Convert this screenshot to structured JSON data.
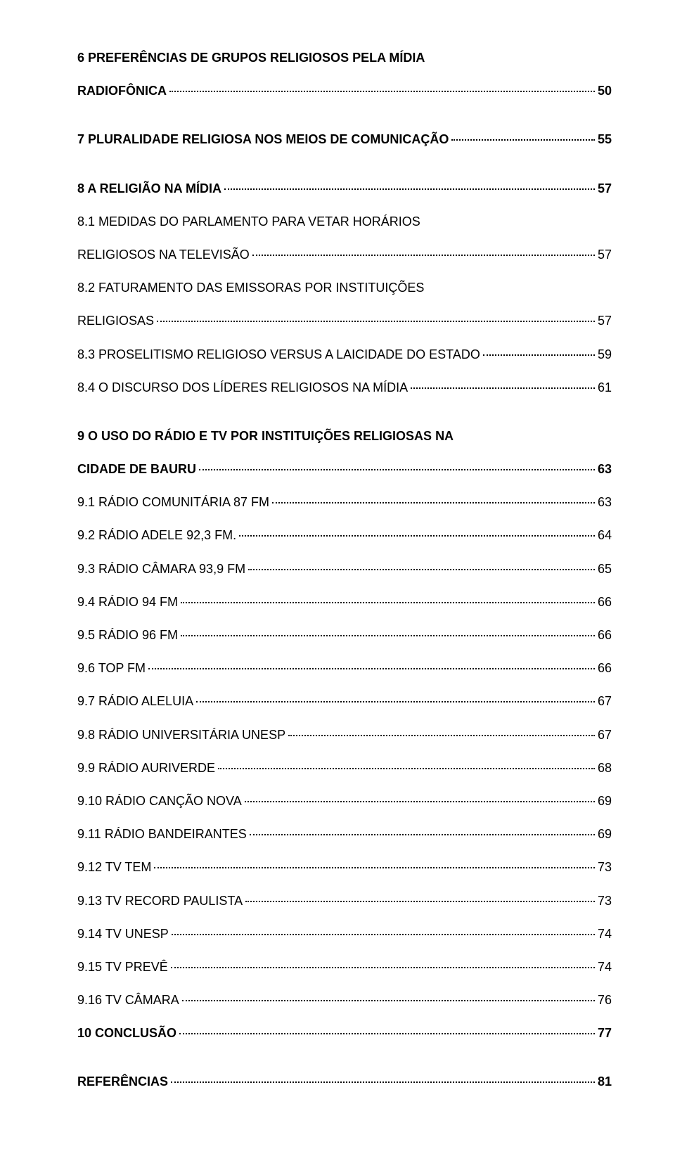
{
  "entries": [
    {
      "type": "multiline",
      "bold": true,
      "line1": "6 PREFERÊNCIAS DE GRUPOS RELIGIOSOS PELA MÍDIA",
      "line2": "RADIOFÔNICA",
      "page": "50"
    },
    {
      "type": "spacer"
    },
    {
      "type": "single",
      "bold": true,
      "label": "7 PLURALIDADE RELIGIOSA NOS MEIOS DE COMUNICAÇÃO",
      "page": "55"
    },
    {
      "type": "spacer"
    },
    {
      "type": "single",
      "bold": true,
      "label": "8 A RELIGIÃO NA MÍDIA",
      "page": "57"
    },
    {
      "type": "multiline",
      "bold": false,
      "line1": "8.1 MEDIDAS DO PARLAMENTO PARA VETAR HORÁRIOS",
      "line2": "RELIGIOSOS NA TELEVISÃO",
      "page": "57"
    },
    {
      "type": "multiline",
      "bold": false,
      "line1": "8.2 FATURAMENTO DAS EMISSORAS POR INSTITUIÇÕES",
      "line2": "RELIGIOSAS",
      "page": "57"
    },
    {
      "type": "single",
      "bold": false,
      "label": "8.3 PROSELITISMO RELIGIOSO VERSUS A LAICIDADE DO ESTADO",
      "page": "59"
    },
    {
      "type": "single",
      "bold": false,
      "label": "8.4 O DISCURSO DOS LÍDERES RELIGIOSOS NA MÍDIA",
      "page": "61"
    },
    {
      "type": "spacer"
    },
    {
      "type": "multiline",
      "bold": true,
      "line1": "9 O USO DO RÁDIO E TV POR INSTITUIÇÕES RELIGIOSAS NA",
      "line2": "CIDADE DE BAURU",
      "page": "63"
    },
    {
      "type": "single",
      "bold": false,
      "label": "9.1 RÁDIO COMUNITÁRIA 87 FM",
      "page": "63"
    },
    {
      "type": "single",
      "bold": false,
      "label": "9.2 RÁDIO ADELE 92,3 FM.",
      "page": "64"
    },
    {
      "type": "single",
      "bold": false,
      "label": "9.3 RÁDIO CÂMARA 93,9 FM",
      "page": "65"
    },
    {
      "type": "single",
      "bold": false,
      "label": "9.4 RÁDIO 94 FM",
      "page": "66"
    },
    {
      "type": "single",
      "bold": false,
      "label": "9.5 RÁDIO 96 FM",
      "page": "66"
    },
    {
      "type": "single",
      "bold": false,
      "label": "9.6 TOP FM",
      "page": "66"
    },
    {
      "type": "single",
      "bold": false,
      "label": "9.7 RÁDIO ALELUIA",
      "page": "67"
    },
    {
      "type": "single",
      "bold": false,
      "label": "9.8 RÁDIO UNIVERSITÁRIA UNESP",
      "page": "67"
    },
    {
      "type": "single",
      "bold": false,
      "label": "9.9 RÁDIO AURIVERDE",
      "page": "68"
    },
    {
      "type": "single",
      "bold": false,
      "label": "9.10 RÁDIO CANÇÃO NOVA",
      "page": "69"
    },
    {
      "type": "single",
      "bold": false,
      "label": "9.11 RÁDIO BANDEIRANTES",
      "page": "69"
    },
    {
      "type": "single",
      "bold": false,
      "label": "9.12 TV TEM",
      "page": "73"
    },
    {
      "type": "single",
      "bold": false,
      "label": "9.13 TV RECORD PAULISTA",
      "page": "73"
    },
    {
      "type": "single",
      "bold": false,
      "label": "9.14 TV UNESP",
      "page": "74"
    },
    {
      "type": "single",
      "bold": false,
      "label": "9.15 TV PREVÊ",
      "page": "74"
    },
    {
      "type": "single",
      "bold": false,
      "label": "9.16 TV CÂMARA",
      "page": "76"
    },
    {
      "type": "single",
      "bold": true,
      "label": "10 CONCLUSÃO",
      "page": "77"
    },
    {
      "type": "spacer"
    },
    {
      "type": "single",
      "bold": true,
      "label": "REFERÊNCIAS",
      "page": "81"
    }
  ]
}
